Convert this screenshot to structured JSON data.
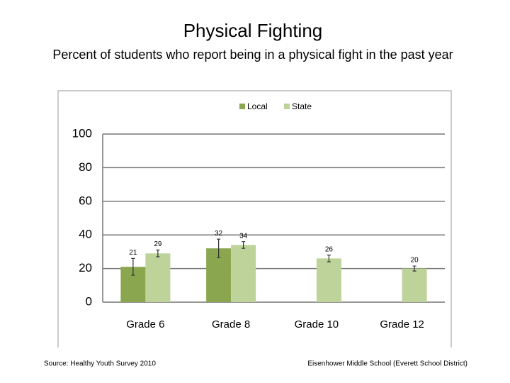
{
  "chart_data": {
    "type": "bar",
    "title": "Physical Fighting",
    "subtitle": "Percent of students who report being in a physical fight in the past year",
    "categories": [
      "Grade 6",
      "Grade 8",
      "Grade 10",
      "Grade 12"
    ],
    "series": [
      {
        "name": "Local",
        "color": "#8aa64e",
        "values": [
          21,
          32,
          null,
          null
        ],
        "errors": [
          5,
          5.5,
          null,
          null
        ]
      },
      {
        "name": "State",
        "color": "#bdd39a",
        "values": [
          29,
          34,
          26,
          20
        ],
        "errors": [
          2,
          2,
          2,
          1.5
        ]
      }
    ],
    "ylim": [
      0,
      100
    ],
    "yticks": [
      0,
      20,
      40,
      60,
      80,
      100
    ],
    "grid": true,
    "legend": "top"
  },
  "footer": {
    "source": "Source: Healthy Youth Survey 2010",
    "school": "Eisenhower Middle School (Everett School District)"
  }
}
